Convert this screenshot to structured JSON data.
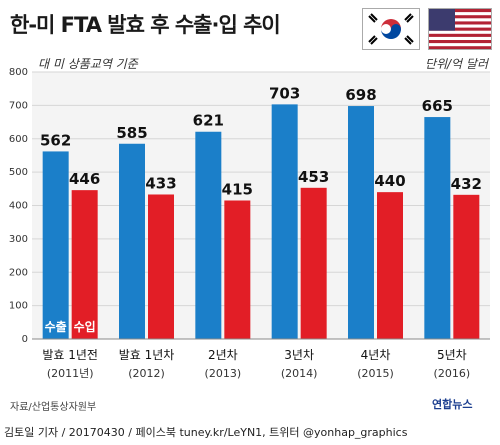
{
  "header": {
    "title": "한-미 FTA 발효 후 수출·입 추이",
    "subtitle": "대 미 상품교역 기준",
    "unit": "단위/억 달러"
  },
  "footer": {
    "source": "자료/산업통상자원부",
    "logo": "연합뉴스",
    "credit": "김토일 기자 / 20170430 / 페이스북 tuney.kr/LeYN1, 트위터 @yonhap_graphics"
  },
  "colors": {
    "export": "#1b7fc9",
    "import": "#e21e26",
    "grid": "#d6d6d6",
    "chart_bg": "#f4f4f4"
  },
  "chart_data": {
    "type": "bar",
    "title": "한-미 FTA 발효 후 수출·입 추이",
    "subtitle": "대 미 상품교역 기준",
    "unit": "단위/억 달러",
    "categories": [
      "발효 1년전",
      "발효 1년차",
      "2년차",
      "3년차",
      "4년차",
      "5년차"
    ],
    "category_years": [
      "(2011년)",
      "(2012)",
      "(2013)",
      "(2014)",
      "(2015)",
      "(2016)"
    ],
    "series": [
      {
        "name": "수출",
        "color": "#1b7fc9",
        "values": [
          562,
          585,
          621,
          703,
          698,
          665
        ]
      },
      {
        "name": "수입",
        "color": "#e21e26",
        "values": [
          446,
          433,
          415,
          453,
          440,
          432
        ]
      }
    ],
    "ylim": [
      0,
      800
    ],
    "yticks": [
      0,
      100,
      200,
      300,
      400,
      500,
      600,
      700,
      800
    ],
    "grid": true,
    "legend": "bottom-left inside bars"
  }
}
